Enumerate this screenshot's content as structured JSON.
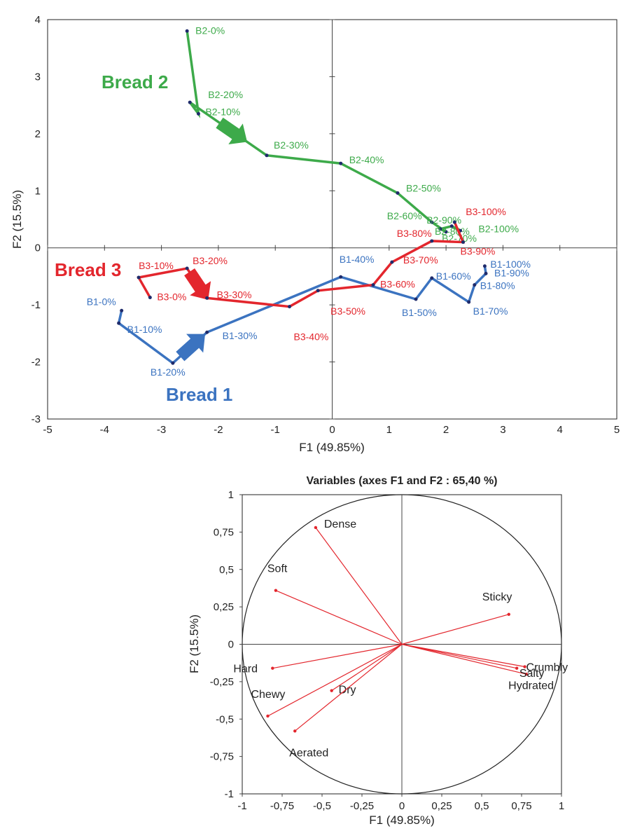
{
  "chart_data": [
    {
      "type": "line",
      "title": "",
      "xlabel": "F1 (49.85%)",
      "ylabel": "F2 (15.5%)",
      "xlim": [
        -5,
        5
      ],
      "ylim": [
        -3,
        4
      ],
      "xticks": [
        -5,
        -4,
        -3,
        -2,
        -1,
        0,
        1,
        2,
        3,
        4,
        5
      ],
      "yticks": [
        -3,
        -2,
        -1,
        0,
        1,
        2,
        3,
        4
      ],
      "grid": false,
      "colors": {
        "Bread 1": "#3b73c0",
        "Bread 2": "#3daa4a",
        "Bread 3": "#e3262d",
        "markers": "#1f2b6b"
      },
      "series": [
        {
          "name": "Bread 1",
          "points": [
            {
              "label": "B1-0%",
              "x": -3.7,
              "y": -1.1
            },
            {
              "label": "B1-10%",
              "x": -3.75,
              "y": -1.32
            },
            {
              "label": "B1-20%",
              "x": -2.8,
              "y": -2.02
            },
            {
              "label": "B1-30%",
              "x": -2.2,
              "y": -1.48
            },
            {
              "label": "B1-40%",
              "x": 0.15,
              "y": -0.51
            },
            {
              "label": "B1-50%",
              "x": 1.47,
              "y": -0.9
            },
            {
              "label": "B1-60%",
              "x": 1.75,
              "y": -0.53
            },
            {
              "label": "B1-70%",
              "x": 2.4,
              "y": -0.95
            },
            {
              "label": "B1-80%",
              "x": 2.5,
              "y": -0.65
            },
            {
              "label": "B1-90%",
              "x": 2.7,
              "y": -0.45
            },
            {
              "label": "B1-100%",
              "x": 2.68,
              "y": -0.32
            }
          ]
        },
        {
          "name": "Bread 2",
          "points": [
            {
              "label": "B2-0%",
              "x": -2.55,
              "y": 3.8
            },
            {
              "label": "B2-10%",
              "x": -2.35,
              "y": 2.35
            },
            {
              "label": "B2-20%",
              "x": -2.5,
              "y": 2.55
            },
            {
              "label": "B2-30%",
              "x": -1.15,
              "y": 1.62
            },
            {
              "label": "B2-40%",
              "x": 0.15,
              "y": 1.48
            },
            {
              "label": "B2-50%",
              "x": 1.15,
              "y": 0.96
            },
            {
              "label": "B2-60%",
              "x": 1.75,
              "y": 0.45
            },
            {
              "label": "B2-70%",
              "x": 2.0,
              "y": 0.28
            },
            {
              "label": "B2-80%",
              "x": 1.9,
              "y": 0.33
            },
            {
              "label": "B2-90%",
              "x": 2.1,
              "y": 0.38
            },
            {
              "label": "B2-100%",
              "x": 2.25,
              "y": 0.3
            }
          ]
        },
        {
          "name": "Bread 3",
          "points": [
            {
              "label": "B3-0%",
              "x": -3.2,
              "y": -0.87
            },
            {
              "label": "B3-10%",
              "x": -3.4,
              "y": -0.52
            },
            {
              "label": "B3-20%",
              "x": -2.55,
              "y": -0.36
            },
            {
              "label": "B3-30%",
              "x": -2.2,
              "y": -0.88
            },
            {
              "label": "B3-40%",
              "x": -0.75,
              "y": -1.03
            },
            {
              "label": "B3-50%",
              "x": -0.25,
              "y": -0.75
            },
            {
              "label": "B3-60%",
              "x": 0.72,
              "y": -0.65
            },
            {
              "label": "B3-70%",
              "x": 1.05,
              "y": -0.25
            },
            {
              "label": "B3-80%",
              "x": 1.75,
              "y": 0.12
            },
            {
              "label": "B3-90%",
              "x": 2.3,
              "y": 0.1
            },
            {
              "label": "B3-100%",
              "x": 2.15,
              "y": 0.45
            }
          ]
        }
      ],
      "series_labels": [
        "Bread 1",
        "Bread 2",
        "Bread 3"
      ]
    },
    {
      "type": "scatter",
      "title": "Variables (axes F1 and F2 : 65,40 %)",
      "xlabel": "F1 (49.85%)",
      "ylabel": "F2 (15.5%)",
      "xlim": [
        -1,
        1
      ],
      "ylim": [
        -1,
        1
      ],
      "xticks": [
        "-1",
        "-0,75",
        "-0,5",
        "-0,25",
        "0",
        "0,25",
        "0,5",
        "0,75",
        "1"
      ],
      "yticks": [
        "1",
        "0,75",
        "0,5",
        "0,25",
        "0",
        "-0,25",
        "-0,5",
        "-0,75",
        "-1"
      ],
      "grid": false,
      "unit_circle": true,
      "vector_color": "#e3262d",
      "variables": [
        {
          "name": "Dense",
          "x": -0.54,
          "y": 0.78
        },
        {
          "name": "Soft",
          "x": -0.79,
          "y": 0.36
        },
        {
          "name": "Sticky",
          "x": 0.67,
          "y": 0.2
        },
        {
          "name": "Crumbly",
          "x": 0.77,
          "y": -0.15
        },
        {
          "name": "Salty",
          "x": 0.78,
          "y": -0.2
        },
        {
          "name": "Hydrated",
          "x": 0.72,
          "y": -0.16
        },
        {
          "name": "Hard",
          "x": -0.81,
          "y": -0.16
        },
        {
          "name": "Dry",
          "x": -0.44,
          "y": -0.31
        },
        {
          "name": "Chewy",
          "x": -0.84,
          "y": -0.48
        },
        {
          "name": "Aerated",
          "x": -0.67,
          "y": -0.58
        }
      ]
    }
  ]
}
